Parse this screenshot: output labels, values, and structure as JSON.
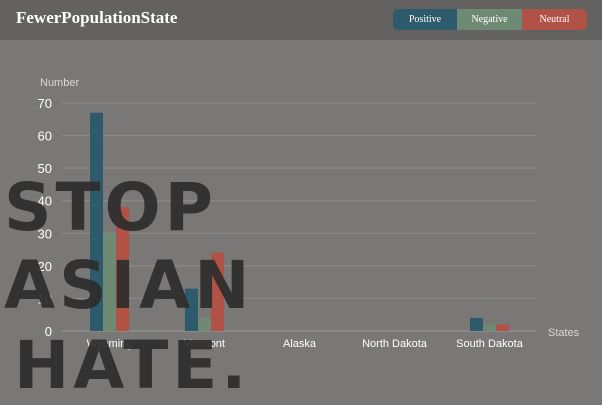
{
  "header": {
    "title": "FewerPopulationState"
  },
  "legend": {
    "items": [
      {
        "label": "Positive",
        "color": "#2e5b6b"
      },
      {
        "label": "Negative",
        "color": "#6e8a75"
      },
      {
        "label": "Neutral",
        "color": "#b05245"
      }
    ]
  },
  "overlay": {
    "text": "STOP ASIAN HATE.",
    "color": "#2d2d2d"
  },
  "chart_data": {
    "type": "bar",
    "xlabel": "States",
    "ylabel": "Number",
    "categories": [
      "Wyoming",
      "Vermont",
      "Alaska",
      "North Dakota",
      "South Dakota"
    ],
    "series": [
      {
        "name": "Positive",
        "values": [
          67,
          13,
          0,
          0,
          4
        ]
      },
      {
        "name": "Negative",
        "values": [
          30,
          4,
          0,
          0,
          2
        ]
      },
      {
        "name": "Neutral",
        "values": [
          38,
          24,
          0,
          0,
          2
        ]
      }
    ],
    "ylim": [
      0,
      70
    ],
    "yticks": [
      0,
      10,
      20,
      30,
      40,
      50,
      60,
      70
    ],
    "grid": true,
    "legend_position": "top-right"
  }
}
